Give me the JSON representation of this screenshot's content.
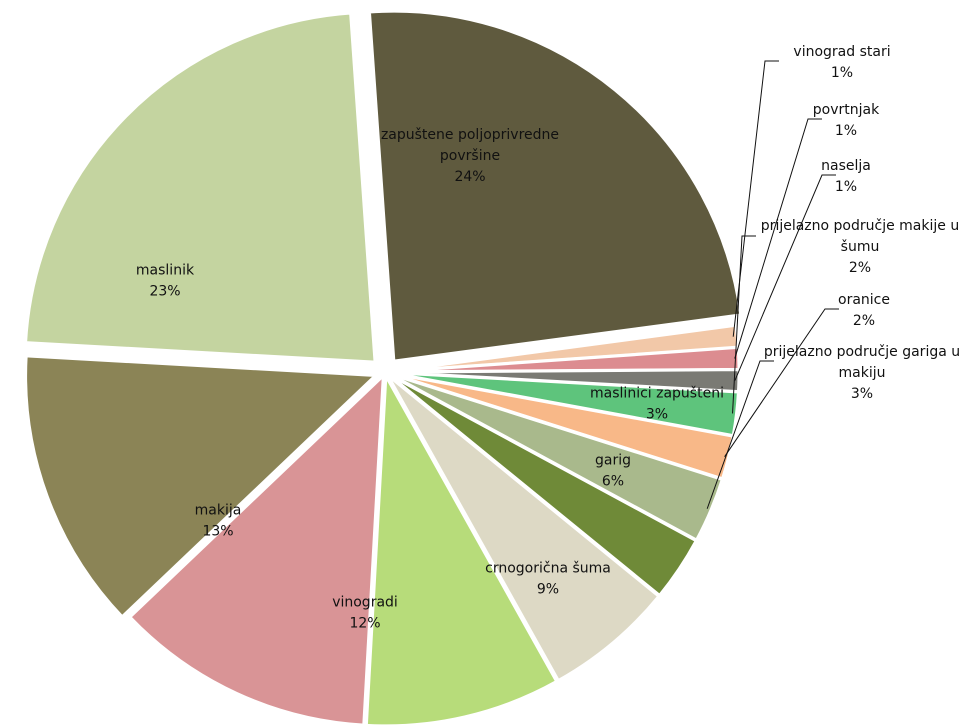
{
  "chart_data": {
    "type": "pie",
    "slices": [
      {
        "label": "zapuštene poljoprivredne površine",
        "value": 24,
        "display": "24%",
        "color": "#5f5a3e",
        "label_lines": [
          "zapuštene poljoprivredne",
          "površine",
          "24%"
        ]
      },
      {
        "label": "vinograd stari",
        "value": 1,
        "display": "1%",
        "color": "#f2c8a8",
        "label_lines": [
          "vinograd stari",
          "1%"
        ]
      },
      {
        "label": "povrtnjak",
        "value": 1,
        "display": "1%",
        "color": "#dc8c90",
        "label_lines": [
          "povrtnjak",
          "1%"
        ]
      },
      {
        "label": "naselja",
        "value": 1,
        "display": "1%",
        "color": "#7a7a74",
        "label_lines": [
          "naselja",
          "1%"
        ]
      },
      {
        "label": "prijelazno područje makije u šumu",
        "value": 2,
        "display": "2%",
        "color": "#5ec47c",
        "label_lines": [
          "prijelazno područje makije u",
          "šumu",
          "2%"
        ]
      },
      {
        "label": "oranice",
        "value": 2,
        "display": "2%",
        "color": "#f8b888",
        "label_lines": [
          "oranice",
          "2%"
        ]
      },
      {
        "label": "prijelazno područje gariga u makiju",
        "value": 3,
        "display": "3%",
        "color": "#a9b98c",
        "label_lines": [
          "prijelazno područje gariga u",
          "makiju",
          "3%"
        ]
      },
      {
        "label": "maslinici zapušteni",
        "value": 3,
        "display": "3%",
        "color": "#6f8a38",
        "label_lines": [
          "maslinici zapušteni",
          "3%"
        ]
      },
      {
        "label": "garig",
        "value": 6,
        "display": "6%",
        "color": "#ddd9c5",
        "label_lines": [
          "garig",
          "6%"
        ]
      },
      {
        "label": "crnogorična šuma",
        "value": 9,
        "display": "9%",
        "color": "#b7dc7a",
        "label_lines": [
          "crnogorična šuma",
          "9%"
        ]
      },
      {
        "label": "vinogradi",
        "value": 12,
        "display": "12%",
        "color": "#d99496",
        "label_lines": [
          "vinogradi",
          "12%"
        ]
      },
      {
        "label": "makija",
        "value": 13,
        "display": "13%",
        "color": "#8b8456",
        "label_lines": [
          "makija",
          "13%"
        ]
      },
      {
        "label": "maslinik",
        "value": 23,
        "display": "23%",
        "color": "#c4d4a0",
        "label_lines": [
          "maslinik",
          "23%"
        ]
      }
    ],
    "title": "",
    "legend": "none"
  }
}
